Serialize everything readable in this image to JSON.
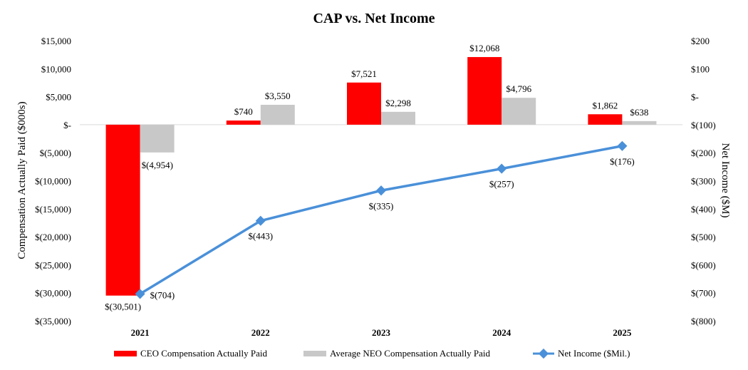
{
  "chart_data": {
    "type": "bar",
    "title": "CAP vs. Net Income",
    "ylabel": "Compensation Actually Paid ($000s)",
    "y2label": "Net Income ($M)",
    "categories": [
      "2021",
      "2022",
      "2023",
      "2024",
      "2025"
    ],
    "ylim": [
      -35000,
      15000
    ],
    "y2lim": [
      -800,
      200
    ],
    "yticks": [
      15000,
      10000,
      5000,
      0,
      -5000,
      -10000,
      -15000,
      -20000,
      -25000,
      -30000,
      -35000
    ],
    "ytick_labels": [
      "$15,000",
      "$10,000",
      "$5,000",
      "$-",
      "$(5,000)",
      "$(10,000)",
      "$(15,000)",
      "$(20,000)",
      "$(25,000)",
      "$(30,000)",
      "$(35,000)"
    ],
    "y2ticks": [
      200,
      100,
      0,
      -100,
      -200,
      -300,
      -400,
      -500,
      -600,
      -700,
      -800
    ],
    "y2tick_labels": [
      "$200",
      "$100",
      "$-",
      "$(100)",
      "$(200)",
      "$(300)",
      "$(400)",
      "$(500)",
      "$(600)",
      "$(700)",
      "$(800)"
    ],
    "series": [
      {
        "name": "CEO Compensation Actually Paid",
        "kind": "bar",
        "axis": "left",
        "color": "#ff0000",
        "values": [
          -30501,
          740,
          7521,
          12068,
          1862
        ],
        "labels": [
          "$(30,501)",
          "$740",
          "$7,521",
          "$12,068",
          "$1,862"
        ]
      },
      {
        "name": "Average NEO Compensation Actually Paid",
        "kind": "bar",
        "axis": "left",
        "color": "#c8c8c8",
        "values": [
          -4954,
          3550,
          2298,
          4796,
          638
        ],
        "labels": [
          "$(4,954)",
          "$3,550",
          "$2,298",
          "$4,796",
          "$638"
        ]
      },
      {
        "name": "Net Income ($Mil.)",
        "kind": "line",
        "axis": "right",
        "color": "#4a90d9",
        "values": [
          -704,
          -443,
          -335,
          -257,
          -176
        ],
        "labels": [
          "$(704)",
          "$(443)",
          "$(335)",
          "$(257)",
          "$(176)"
        ]
      }
    ],
    "legend_position": "bottom",
    "grid": false
  }
}
